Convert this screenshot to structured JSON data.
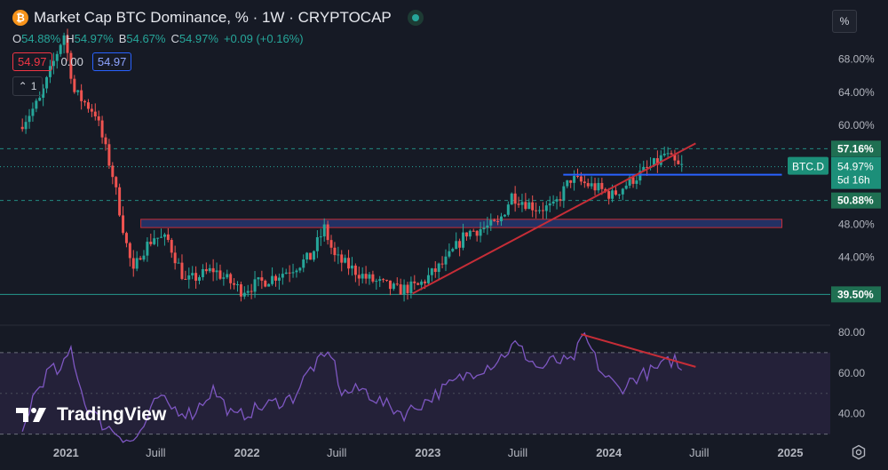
{
  "header": {
    "title": "Market Cap BTC Dominance, % · 1W · CRYPTOCAP",
    "coin_icon": "bitcoin-icon",
    "ohlc": [
      {
        "k": "O",
        "v": "54.88%"
      },
      {
        "k": "H",
        "v": "54.97%"
      },
      {
        "k": "B",
        "v": "54.67%"
      },
      {
        "k": "C",
        "v": "54.97%"
      },
      {
        "k": "",
        "v": "+0.09 (+0.16%)"
      }
    ],
    "box_red": "54.97",
    "box_mid": "0.00",
    "box_blue": "54.97",
    "collapse_count": "1",
    "unit_button": "%"
  },
  "watermark": "TradingView",
  "colors": {
    "background": "#161a25",
    "up": "#26a69a",
    "down": "#ef5350",
    "trendline": "#c62d37",
    "resistance": "#2962ff",
    "rsi_line": "#7e57c2",
    "price_tag": "#1c8f79"
  },
  "chart_data": [
    {
      "type": "candlestick",
      "title": "Market Cap BTC Dominance, % · 1W · CRYPTOCAP",
      "y_unit": "%",
      "ylim": [
        36.2,
        71.3
      ],
      "y_ticks": [
        "68.00%",
        "64.00%",
        "60.00%",
        "57.16%",
        "54.97%",
        "50.88%",
        "48.00%",
        "44.00%",
        "39.50%"
      ],
      "x_ticks": [
        "2021",
        "Juill",
        "2022",
        "Juill",
        "2023",
        "Juill",
        "2024",
        "Juill",
        "2025"
      ],
      "x_tick_dates": [
        "2021-01",
        "2021-07",
        "2022-01",
        "2022-07",
        "2023-01",
        "2023-07",
        "2024-01",
        "2024-07",
        "2025-01"
      ],
      "grid": false,
      "approx_path": [
        [
          "2020-10-05",
          59.8
        ],
        [
          "2020-11-16",
          63.0
        ],
        [
          "2020-12-28",
          70.0
        ],
        [
          "2021-01-04",
          71.0
        ],
        [
          "2021-01-25",
          64.0
        ],
        [
          "2021-03-08",
          61.5
        ],
        [
          "2021-04-12",
          54.0
        ],
        [
          "2021-05-10",
          45.5
        ],
        [
          "2021-05-24",
          42.0
        ],
        [
          "2021-06-07",
          44.5
        ],
        [
          "2021-07-05",
          46.5
        ],
        [
          "2021-08-02",
          46.0
        ],
        [
          "2021-09-06",
          41.0
        ],
        [
          "2021-11-01",
          42.5
        ],
        [
          "2021-12-27",
          40.0
        ],
        [
          "2022-02-07",
          41.0
        ],
        [
          "2022-04-04",
          42.5
        ],
        [
          "2022-05-16",
          44.0
        ],
        [
          "2022-06-13",
          47.5
        ],
        [
          "2022-07-04",
          44.0
        ],
        [
          "2022-09-05",
          41.5
        ],
        [
          "2022-11-07",
          40.0
        ],
        [
          "2022-12-19",
          40.5
        ],
        [
          "2023-02-13",
          43.5
        ],
        [
          "2023-03-27",
          47.0
        ],
        [
          "2023-05-29",
          48.0
        ],
        [
          "2023-06-26",
          51.5
        ],
        [
          "2023-08-14",
          50.0
        ],
        [
          "2023-09-18",
          50.0
        ],
        [
          "2023-10-23",
          53.5
        ],
        [
          "2023-12-11",
          52.5
        ],
        [
          "2024-01-15",
          51.5
        ],
        [
          "2024-02-26",
          53.5
        ],
        [
          "2024-04-15",
          55.5
        ],
        [
          "2024-04-29",
          56.5
        ],
        [
          "2024-05-27",
          54.97
        ]
      ],
      "annotations": {
        "resistance_line": {
          "y": 54.0,
          "from": "2023-10-01",
          "to": "2024-12-15",
          "color": "#2962ff"
        },
        "support_zone": {
          "y_top": 48.6,
          "y_bottom": 47.6,
          "from": "2021-06-01",
          "to": "2024-12-15"
        },
        "trendline": {
          "from": [
            "2022-12-01",
            39.6
          ],
          "to": [
            "2024-06-24",
            57.8
          ],
          "color": "#c62d37"
        },
        "dashed_levels": [
          57.16,
          50.88
        ],
        "dotted_level": 54.97,
        "solid_level": 39.5
      },
      "price_labels": [
        {
          "text": "57.16%",
          "y": 57.16,
          "style": "green"
        },
        {
          "text": "54.97%",
          "y": 54.97,
          "style": "tag",
          "sub": "5d 16h",
          "symbol": "BTC.D"
        },
        {
          "text": "50.88%",
          "y": 50.88,
          "style": "green"
        },
        {
          "text": "39.50%",
          "y": 39.5,
          "style": "green"
        }
      ]
    },
    {
      "type": "line",
      "name": "",
      "ylim": [
        29.4,
        83
      ],
      "y_ticks": [
        "80.00",
        "60.00",
        "40.00"
      ],
      "band": [
        30,
        70
      ],
      "approx_path": [
        [
          "2020-10-05",
          30
        ],
        [
          "2020-10-26",
          48
        ],
        [
          "2020-11-30",
          62
        ],
        [
          "2020-12-21",
          60
        ],
        [
          "2021-01-11",
          72
        ],
        [
          "2021-02-08",
          45
        ],
        [
          "2021-03-15",
          35
        ],
        [
          "2021-04-19",
          30
        ],
        [
          "2021-05-17",
          26
        ],
        [
          "2021-06-14",
          37
        ],
        [
          "2021-07-05",
          48
        ],
        [
          "2021-08-02",
          43
        ],
        [
          "2021-09-13",
          40
        ],
        [
          "2021-10-25",
          52
        ],
        [
          "2021-12-06",
          38
        ],
        [
          "2022-02-07",
          44
        ],
        [
          "2022-04-04",
          48
        ],
        [
          "2022-05-09",
          62
        ],
        [
          "2022-06-20",
          70
        ],
        [
          "2022-07-11",
          50
        ],
        [
          "2022-08-22",
          52
        ],
        [
          "2022-10-03",
          45
        ],
        [
          "2022-11-14",
          40
        ],
        [
          "2022-12-26",
          46
        ],
        [
          "2023-02-20",
          55
        ],
        [
          "2023-03-27",
          60
        ],
        [
          "2023-05-15",
          65
        ],
        [
          "2023-06-26",
          74
        ],
        [
          "2023-08-14",
          62
        ],
        [
          "2023-09-11",
          66
        ],
        [
          "2023-10-16",
          65
        ],
        [
          "2023-11-13",
          78
        ],
        [
          "2023-12-18",
          60
        ],
        [
          "2024-01-22",
          52
        ],
        [
          "2024-02-26",
          58
        ],
        [
          "2024-04-08",
          62
        ],
        [
          "2024-05-13",
          67
        ],
        [
          "2024-05-27",
          60
        ]
      ],
      "annotations": {
        "trendline": {
          "from": [
            "2023-11-06",
            79
          ],
          "to": [
            "2024-06-24",
            63
          ],
          "color": "#c62d37"
        }
      }
    }
  ]
}
